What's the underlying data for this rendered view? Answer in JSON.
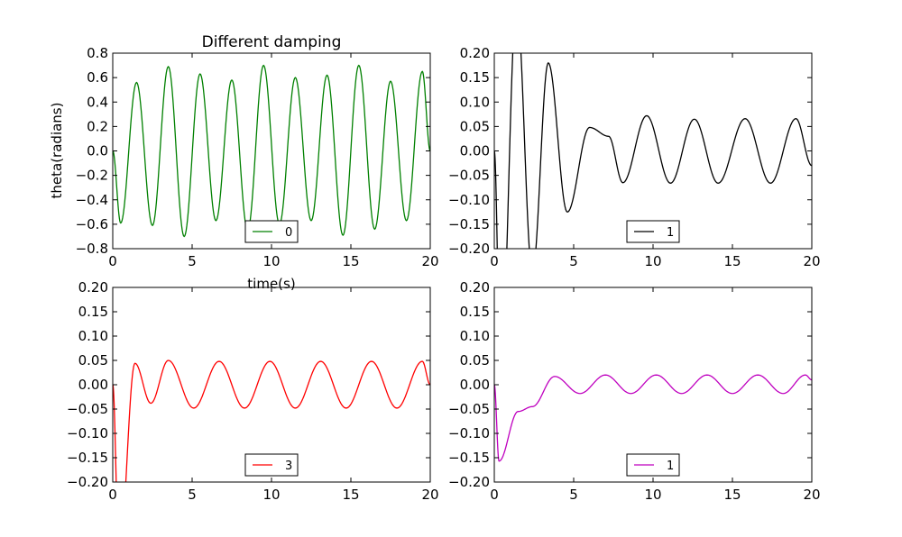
{
  "chart_data": [
    {
      "type": "line",
      "title": "Different damping",
      "xlabel": "time(s)",
      "ylabel": "theta(radians)",
      "xlim": [
        0,
        20
      ],
      "ylim": [
        -0.8,
        0.8
      ],
      "xticks": [
        0,
        5,
        10,
        15,
        20
      ],
      "yticks": [
        -0.8,
        -0.6,
        -0.4,
        -0.2,
        0.0,
        0.2,
        0.4,
        0.6,
        0.8
      ],
      "xtick_labels": [
        "0",
        "5",
        "10",
        "15",
        "20"
      ],
      "ytick_labels": [
        "−0.8",
        "−0.6",
        "−0.4",
        "−0.2",
        "0.0",
        "0.2",
        "0.4",
        "0.6",
        "0.8"
      ],
      "legend_placement": "lower-center",
      "series": [
        {
          "name": "0",
          "color": "#008000",
          "x": [
            0,
            0.5,
            1.5,
            2.5,
            3.5,
            4.5,
            5.5,
            6.5,
            7.5,
            8.5,
            9.5,
            10.5,
            11.5,
            12.5,
            13.5,
            14.5,
            15.5,
            16.5,
            17.5,
            18.5,
            19.5,
            20
          ],
          "y": [
            0.0,
            -0.59,
            0.56,
            -0.61,
            0.69,
            -0.7,
            0.63,
            -0.57,
            0.58,
            -0.65,
            0.7,
            -0.6,
            0.6,
            -0.57,
            0.62,
            -0.69,
            0.7,
            -0.64,
            0.57,
            -0.57,
            0.65,
            0.0
          ]
        }
      ]
    },
    {
      "type": "line",
      "xlim": [
        0,
        20
      ],
      "ylim": [
        -0.2,
        0.2
      ],
      "xticks": [
        0,
        5,
        10,
        15,
        20
      ],
      "yticks": [
        -0.2,
        -0.15,
        -0.1,
        -0.05,
        0.0,
        0.05,
        0.1,
        0.15,
        0.2
      ],
      "xtick_labels": [
        "0",
        "5",
        "10",
        "15",
        "20"
      ],
      "ytick_labels": [
        "−0.20",
        "−0.15",
        "−0.10",
        "−0.05",
        "0.00",
        "0.05",
        "0.10",
        "0.15",
        "0.20"
      ],
      "legend_placement": "lower-center",
      "series": [
        {
          "name": "1",
          "color": "#000000",
          "x": [
            0,
            0.4,
            1.4,
            2.4,
            3.4,
            4.6,
            6.0,
            7.2,
            8.1,
            9.6,
            11.1,
            12.6,
            14.1,
            15.8,
            17.4,
            19.0,
            20
          ],
          "y": [
            0.0,
            -0.45,
            0.3,
            -0.25,
            0.18,
            -0.125,
            0.048,
            0.03,
            -0.065,
            0.072,
            -0.066,
            0.065,
            -0.066,
            0.066,
            -0.066,
            0.066,
            -0.03
          ]
        }
      ]
    },
    {
      "type": "line",
      "xlim": [
        0,
        20
      ],
      "ylim": [
        -0.2,
        0.2
      ],
      "xticks": [
        0,
        5,
        10,
        15,
        20
      ],
      "yticks": [
        -0.2,
        -0.15,
        -0.1,
        -0.05,
        0.0,
        0.05,
        0.1,
        0.15,
        0.2
      ],
      "xtick_labels": [
        "0",
        "5",
        "10",
        "15",
        "20"
      ],
      "ytick_labels": [
        "−0.20",
        "−0.15",
        "−0.10",
        "−0.05",
        "0.00",
        "0.05",
        "0.10",
        "0.15",
        "0.20"
      ],
      "legend_placement": "lower-center",
      "series": [
        {
          "name": "3",
          "color": "#ff0000",
          "x": [
            0,
            0.4,
            1.4,
            2.4,
            3.5,
            5.1,
            6.7,
            8.3,
            9.9,
            11.5,
            13.1,
            14.7,
            16.3,
            17.9,
            19.5,
            20
          ],
          "y": [
            0.0,
            -0.35,
            0.044,
            -0.038,
            0.05,
            -0.048,
            0.048,
            -0.048,
            0.048,
            -0.048,
            0.048,
            -0.048,
            0.048,
            -0.048,
            0.048,
            0.0
          ]
        }
      ]
    },
    {
      "type": "line",
      "xlim": [
        0,
        20
      ],
      "ylim": [
        -0.2,
        0.2
      ],
      "xticks": [
        0,
        5,
        10,
        15,
        20
      ],
      "yticks": [
        -0.2,
        -0.15,
        -0.1,
        -0.05,
        0.0,
        0.05,
        0.1,
        0.15,
        0.2
      ],
      "xtick_labels": [
        "0",
        "5",
        "10",
        "15",
        "20"
      ],
      "ytick_labels": [
        "−0.20",
        "−0.15",
        "−0.10",
        "−0.05",
        "0.00",
        "0.05",
        "0.10",
        "0.15",
        "0.20"
      ],
      "legend_placement": "lower-center",
      "series": [
        {
          "name": "1",
          "color": "#bf00bf",
          "x": [
            0,
            0.3,
            1.5,
            2.4,
            3.8,
            5.4,
            7.0,
            8.6,
            10.2,
            11.8,
            13.4,
            15.0,
            16.6,
            18.2,
            19.6,
            20
          ],
          "y": [
            0.0,
            -0.157,
            -0.055,
            -0.045,
            0.017,
            -0.018,
            0.02,
            -0.018,
            0.02,
            -0.018,
            0.02,
            -0.018,
            0.02,
            -0.018,
            0.02,
            0.01
          ]
        }
      ]
    }
  ]
}
